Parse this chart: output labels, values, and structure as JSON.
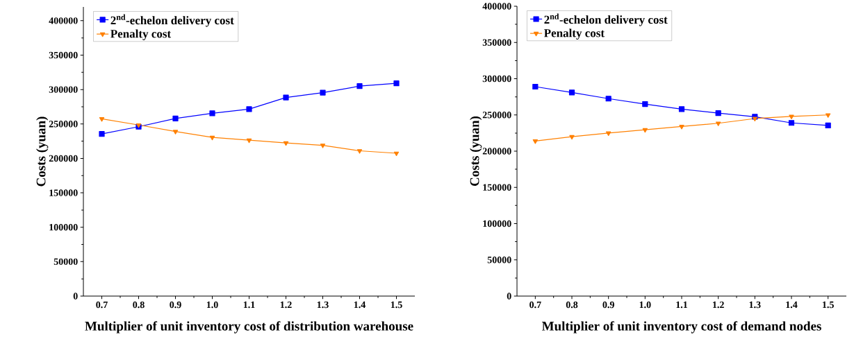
{
  "chart_data": [
    {
      "type": "line",
      "xlabel": "Multiplier of unit inventory cost of distribution warehouse",
      "ylabel": "Costs (yuan)",
      "x": [
        0.7,
        0.8,
        0.9,
        1.0,
        1.1,
        1.2,
        1.3,
        1.4,
        1.5
      ],
      "series": [
        {
          "name": "2$^{nd}$-echelon delivery cost",
          "color": "#0000ff",
          "marker": "square",
          "values": [
            235500,
            246000,
            258000,
            265500,
            271500,
            288500,
            295500,
            305000,
            309000
          ]
        },
        {
          "name": "Penalty cost",
          "color": "#ff8000",
          "marker": "triangle",
          "values": [
            257500,
            248500,
            239000,
            230500,
            226500,
            222500,
            219000,
            211000,
            207500
          ]
        }
      ],
      "xlim": [
        0.65,
        1.55
      ],
      "ylim": [
        0,
        420000
      ],
      "xticks": [
        0.7,
        0.8,
        0.9,
        {
          "value": 1.0,
          "label": "1.0"
        },
        1.1,
        1.2,
        1.3,
        1.4,
        1.5
      ],
      "yticks": [
        0,
        50000,
        100000,
        150000,
        200000,
        250000,
        300000,
        350000,
        400000
      ],
      "legend": "top left"
    },
    {
      "type": "line",
      "xlabel": "Multiplier of unit inventory cost of demand nodes",
      "ylabel": "Costs (yuan)",
      "x": [
        0.7,
        0.8,
        0.9,
        1.0,
        1.1,
        1.2,
        1.3,
        1.4,
        1.5
      ],
      "series": [
        {
          "name": "2$^{nd}$-echelon delivery cost",
          "color": "#0000ff",
          "marker": "square",
          "values": [
            289000,
            281000,
            272500,
            265000,
            258000,
            252500,
            247500,
            239000,
            235500
          ]
        },
        {
          "name": "Penalty cost",
          "color": "#ff8000",
          "marker": "triangle",
          "values": [
            214000,
            220000,
            225000,
            229500,
            234000,
            238500,
            245000,
            248000,
            250000
          ]
        }
      ],
      "xlim": [
        0.65,
        1.55
      ],
      "ylim": [
        0,
        400000
      ],
      "xticks": [
        0.7,
        0.8,
        0.9,
        {
          "value": 1.0,
          "label": "1.0"
        },
        1.1,
        1.2,
        1.3,
        1.4,
        1.5
      ],
      "yticks": [
        0,
        50000,
        100000,
        150000,
        200000,
        250000,
        300000,
        350000,
        400000
      ],
      "legend": "top left"
    }
  ]
}
